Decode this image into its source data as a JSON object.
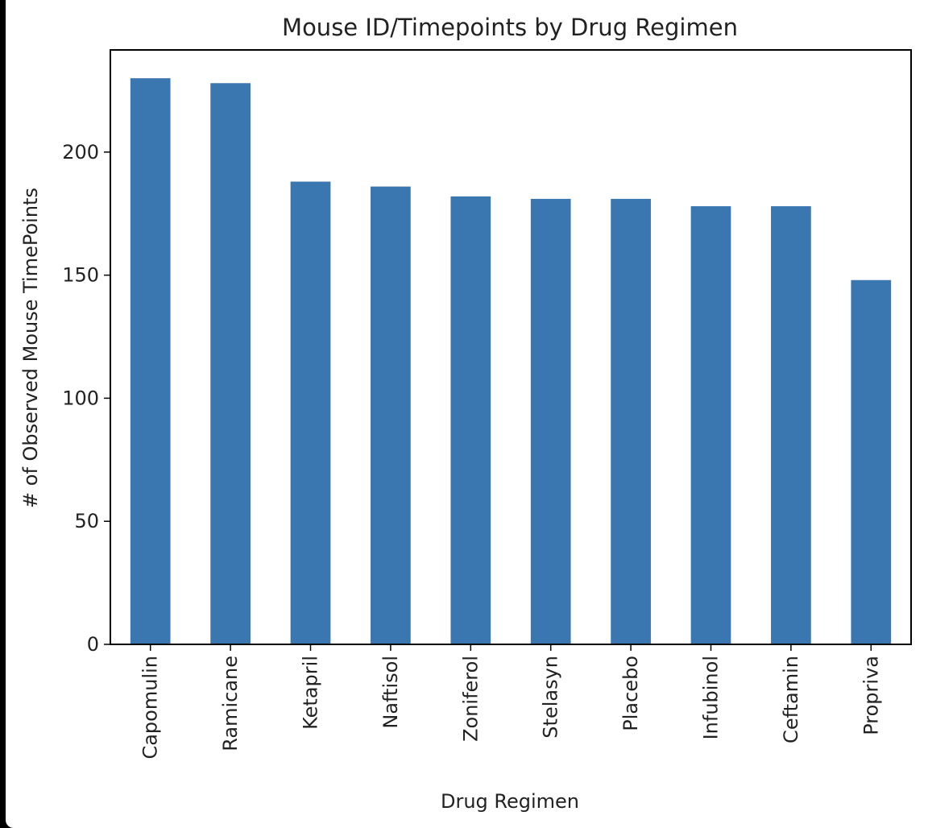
{
  "chart_data": {
    "type": "bar",
    "title": "Mouse ID/Timepoints by Drug Regimen",
    "xlabel": "Drug Regimen",
    "ylabel": "# of Observed Mouse TimePoints",
    "categories": [
      "Capomulin",
      "Ramicane",
      "Ketapril",
      "Naftisol",
      "Zoniferol",
      "Stelasyn",
      "Placebo",
      "Infubinol",
      "Ceftamin",
      "Propriva"
    ],
    "values": [
      230,
      228,
      188,
      186,
      182,
      181,
      181,
      178,
      178,
      148
    ],
    "yticks": [
      0,
      50,
      100,
      150,
      200
    ],
    "ylim": [
      0,
      241.5
    ],
    "bar_color": "#3a76af",
    "grid": false,
    "legend": false
  }
}
